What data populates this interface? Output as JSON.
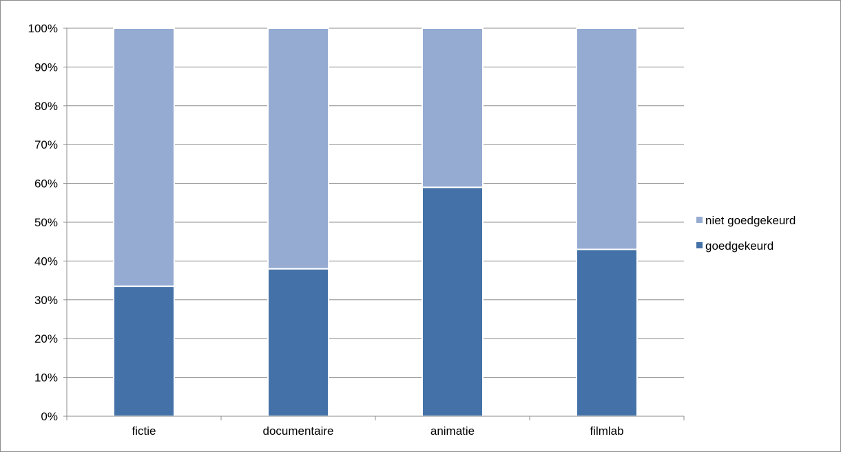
{
  "chart_data": {
    "type": "bar",
    "stacked": true,
    "percent_stacked": true,
    "categories": [
      "fictie",
      "documentaire",
      "animatie",
      "filmlab"
    ],
    "series": [
      {
        "name": "goedgekeurd",
        "values": [
          33.5,
          38,
          59,
          43
        ],
        "color": "#4472a8"
      },
      {
        "name": "niet goedgekeurd",
        "values": [
          66.5,
          62,
          41,
          57
        ],
        "color": "#95abd1"
      }
    ],
    "y_ticks": [
      "0%",
      "10%",
      "20%",
      "30%",
      "40%",
      "50%",
      "60%",
      "70%",
      "80%",
      "90%",
      "100%"
    ],
    "ylim": [
      0,
      100
    ],
    "grid": true,
    "legend": "right",
    "title": "",
    "xlabel": "",
    "ylabel": ""
  }
}
